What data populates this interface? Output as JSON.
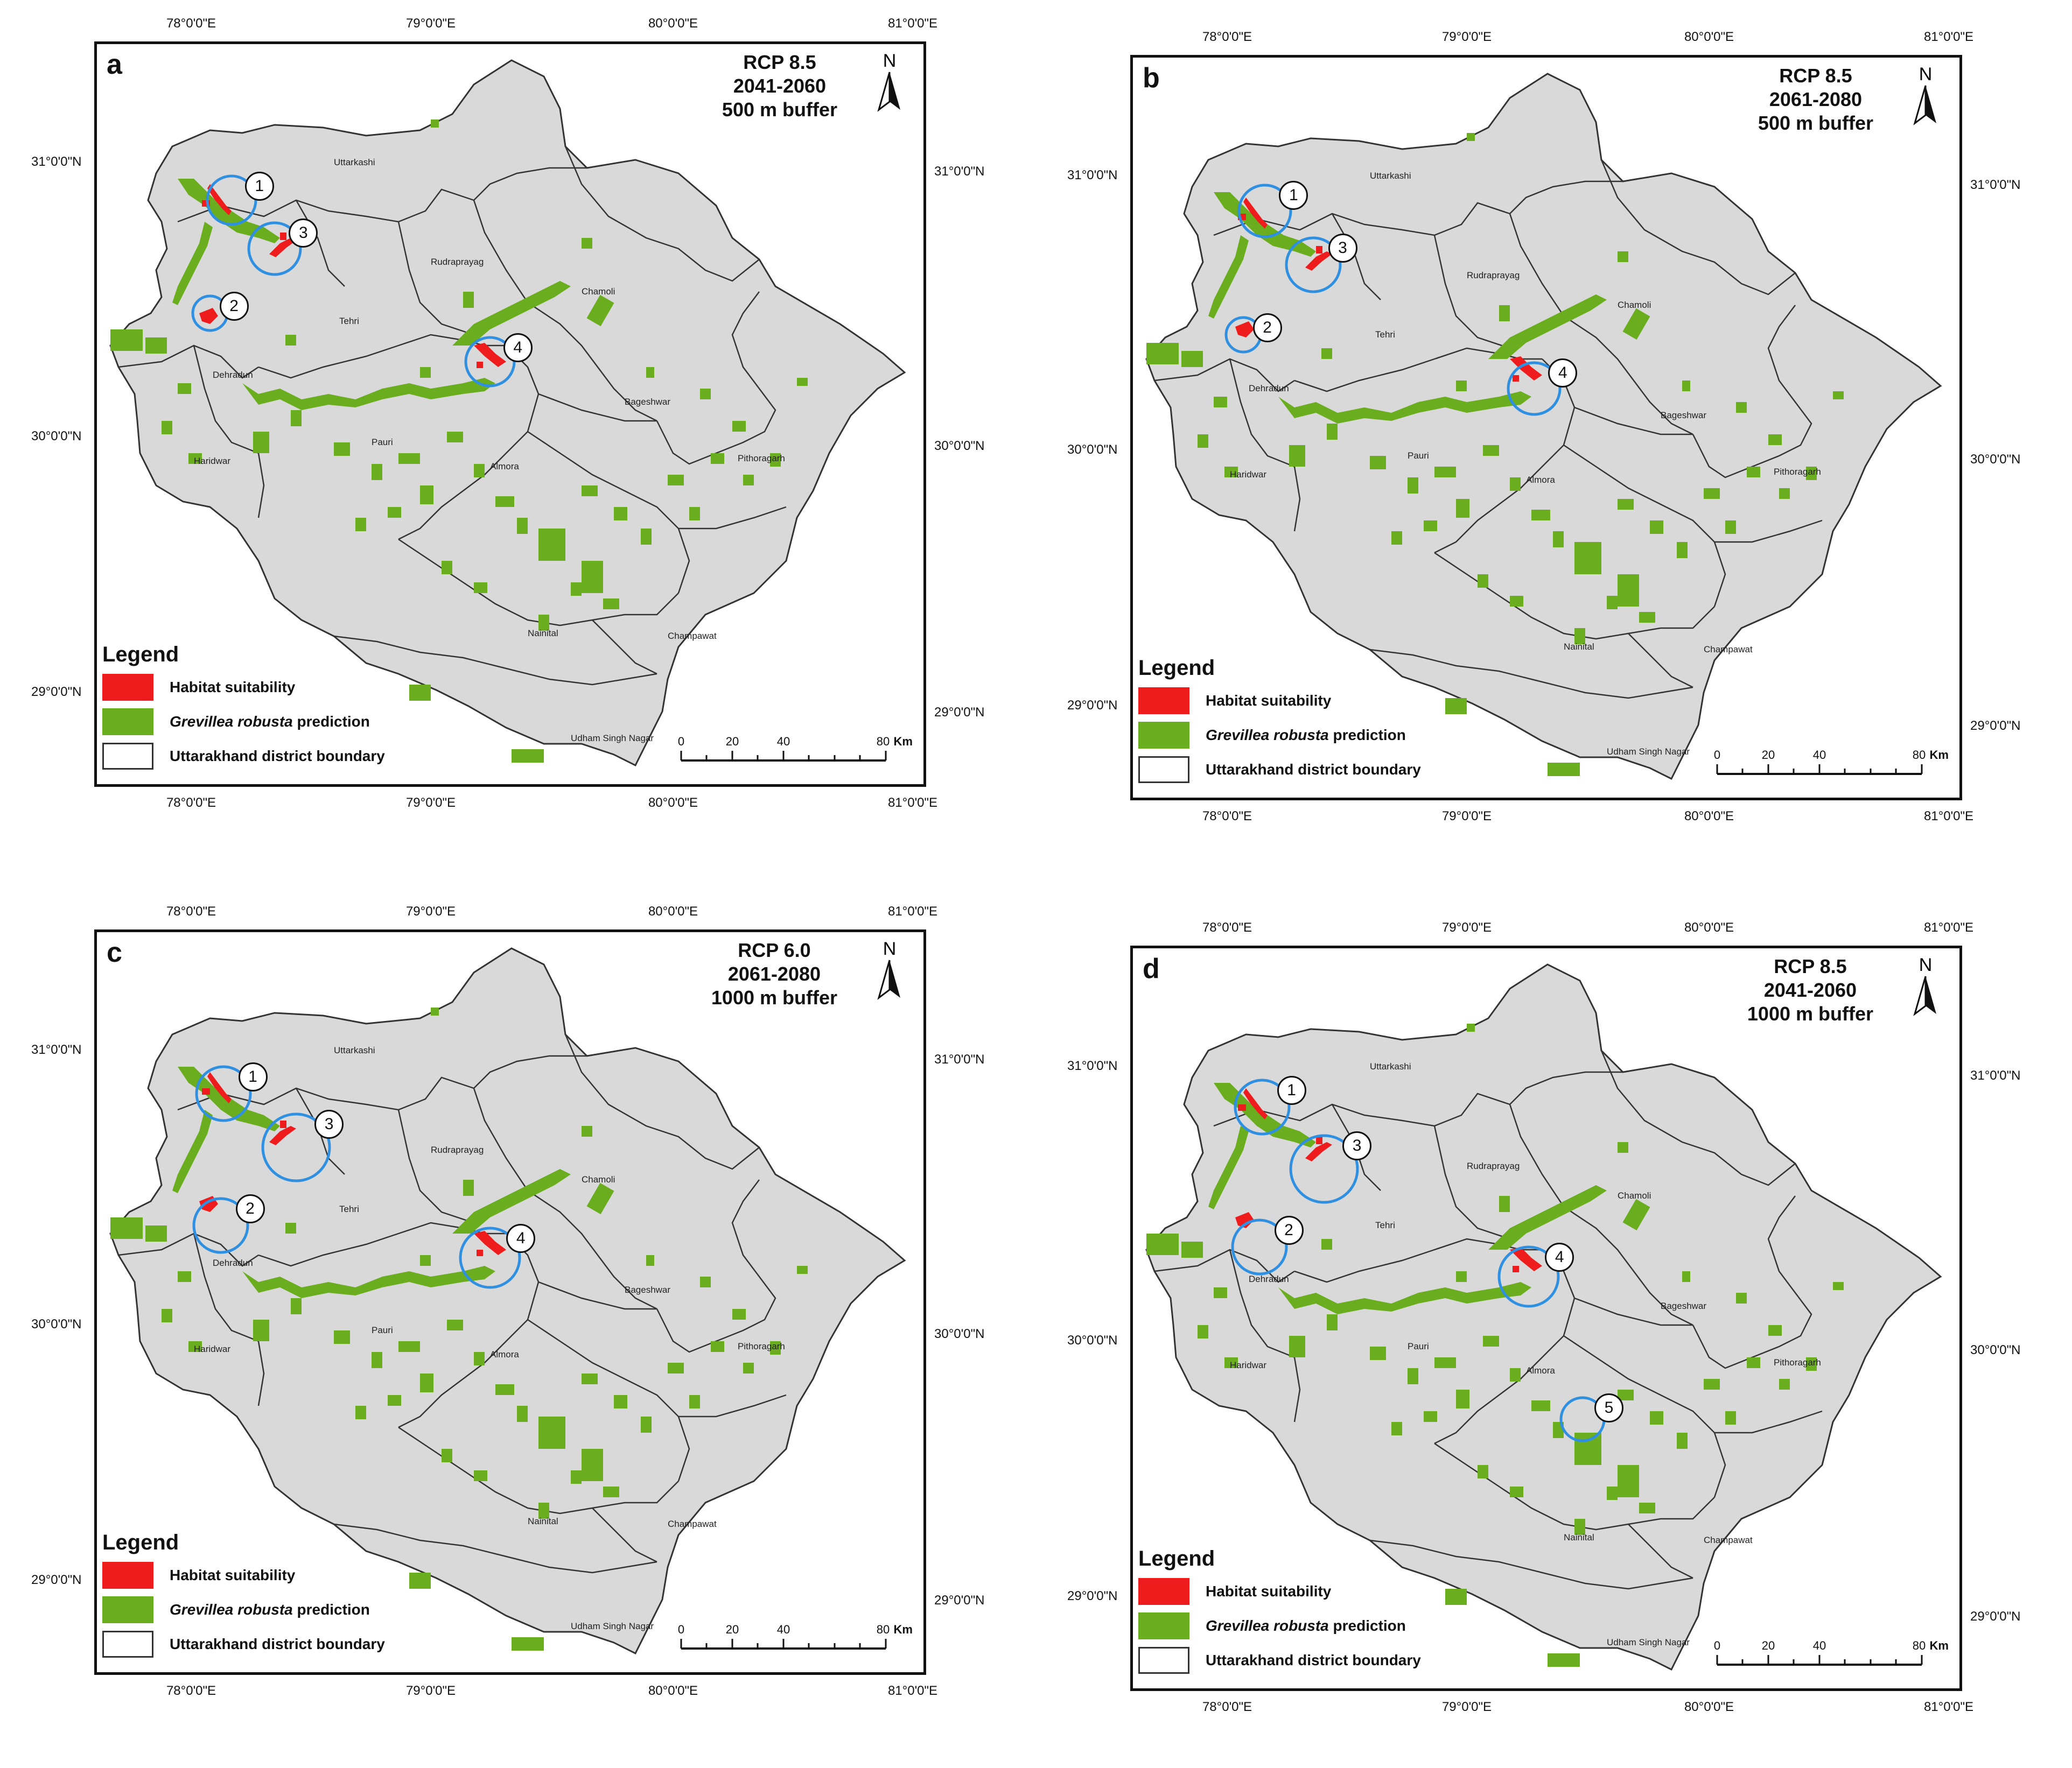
{
  "labels": {
    "lon": [
      "78°0'0\"E",
      "79°0'0\"E",
      "80°0'0\"E",
      "81°0'0\"E"
    ],
    "lat": [
      "31°0'0\"N",
      "30°0'0\"N",
      "29°0'0\"N"
    ]
  },
  "districts": [
    "Uttarkashi",
    "Rudraprayag",
    "Chamoli",
    "Tehri",
    "Dehradun",
    "Bageshwar",
    "Pauri",
    "Almora",
    "Pithoragarh",
    "Haridwar",
    "Nainital",
    "Champawat",
    "Udham Singh Nagar"
  ],
  "legend": {
    "title": "Legend",
    "habitat": "Habitat suitability",
    "species": "Grevillea robusta",
    "prediction": " prediction",
    "boundary": "Uttarakhand district boundary"
  },
  "scale": {
    "ticks": [
      "0",
      "20",
      "40",
      "80"
    ],
    "unit": "Km"
  },
  "north_label": "N",
  "colors": {
    "land": "#d9d9d9",
    "boundary": "#333333",
    "habitat": "#ee1c1c",
    "prediction": "#6aad1e",
    "circle": "#2f8fe0"
  },
  "panels": [
    {
      "letter": "a",
      "rcp": "RCP 8.5",
      "period": "2041-2060",
      "buffer": "500 m buffer",
      "circles": [
        "1",
        "2",
        "3",
        "4"
      ]
    },
    {
      "letter": "b",
      "rcp": "RCP 8.5",
      "period": "2061-2080",
      "buffer": "500 m buffer",
      "circles": [
        "1",
        "2",
        "3",
        "4"
      ]
    },
    {
      "letter": "c",
      "rcp": "RCP 6.0",
      "period": "2061-2080",
      "buffer": "1000 m buffer",
      "circles": [
        "1",
        "2",
        "3",
        "4"
      ]
    },
    {
      "letter": "d",
      "rcp": "RCP 8.5",
      "period": "2041-2060",
      "buffer": "1000 m buffer",
      "circles": [
        "1",
        "2",
        "3",
        "4",
        "5"
      ]
    }
  ]
}
